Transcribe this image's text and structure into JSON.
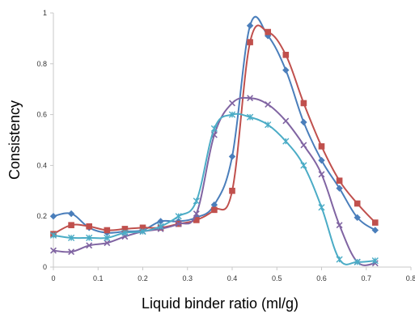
{
  "chart_data": {
    "type": "line",
    "title": "",
    "xlabel": "Liquid binder ratio (ml/g)",
    "ylabel": "Consistency",
    "xlim": [
      0,
      0.8
    ],
    "ylim": [
      0,
      1
    ],
    "xticks": [
      "0",
      "0.1",
      "0.2",
      "0.3",
      "0.4",
      "0.5",
      "0.6",
      "0.7",
      "0.8"
    ],
    "yticks": [
      "0",
      "0.2",
      "0.4",
      "0.6",
      "0.8",
      "1"
    ],
    "grid": false,
    "legend": "none",
    "series": [
      {
        "color": "#4a7ebb",
        "marker": "diamond",
        "points": [
          [
            0,
            0.2
          ],
          [
            0.04,
            0.21
          ],
          [
            0.08,
            0.155
          ],
          [
            0.12,
            0.135
          ],
          [
            0.16,
            0.14
          ],
          [
            0.2,
            0.145
          ],
          [
            0.24,
            0.18
          ],
          [
            0.28,
            0.18
          ],
          [
            0.32,
            0.195
          ],
          [
            0.36,
            0.245
          ],
          [
            0.4,
            0.435
          ],
          [
            0.44,
            0.95
          ],
          [
            0.48,
            0.91
          ],
          [
            0.52,
            0.775
          ],
          [
            0.56,
            0.57
          ],
          [
            0.6,
            0.42
          ],
          [
            0.64,
            0.31
          ],
          [
            0.68,
            0.195
          ],
          [
            0.72,
            0.145
          ]
        ]
      },
      {
        "color": "#c0504d",
        "marker": "square",
        "points": [
          [
            0,
            0.13
          ],
          [
            0.04,
            0.165
          ],
          [
            0.08,
            0.16
          ],
          [
            0.12,
            0.145
          ],
          [
            0.16,
            0.15
          ],
          [
            0.2,
            0.155
          ],
          [
            0.24,
            0.155
          ],
          [
            0.28,
            0.17
          ],
          [
            0.32,
            0.185
          ],
          [
            0.36,
            0.225
          ],
          [
            0.4,
            0.3
          ],
          [
            0.44,
            0.885
          ],
          [
            0.48,
            0.925
          ],
          [
            0.52,
            0.835
          ],
          [
            0.56,
            0.645
          ],
          [
            0.6,
            0.475
          ],
          [
            0.64,
            0.34
          ],
          [
            0.68,
            0.25
          ],
          [
            0.72,
            0.175
          ]
        ]
      },
      {
        "color": "#8064a2",
        "marker": "x",
        "points": [
          [
            0,
            0.065
          ],
          [
            0.04,
            0.06
          ],
          [
            0.08,
            0.085
          ],
          [
            0.12,
            0.095
          ],
          [
            0.16,
            0.12
          ],
          [
            0.2,
            0.14
          ],
          [
            0.24,
            0.15
          ],
          [
            0.28,
            0.17
          ],
          [
            0.32,
            0.21
          ],
          [
            0.36,
            0.52
          ],
          [
            0.4,
            0.645
          ],
          [
            0.44,
            0.665
          ],
          [
            0.48,
            0.64
          ],
          [
            0.52,
            0.575
          ],
          [
            0.56,
            0.48
          ],
          [
            0.6,
            0.365
          ],
          [
            0.64,
            0.165
          ],
          [
            0.68,
            0.02
          ],
          [
            0.72,
            0.015
          ]
        ]
      },
      {
        "color": "#4bacc6",
        "marker": "star",
        "points": [
          [
            0,
            0.125
          ],
          [
            0.04,
            0.115
          ],
          [
            0.08,
            0.115
          ],
          [
            0.12,
            0.115
          ],
          [
            0.16,
            0.135
          ],
          [
            0.2,
            0.14
          ],
          [
            0.24,
            0.16
          ],
          [
            0.28,
            0.2
          ],
          [
            0.32,
            0.26
          ],
          [
            0.36,
            0.545
          ],
          [
            0.4,
            0.6
          ],
          [
            0.44,
            0.59
          ],
          [
            0.48,
            0.56
          ],
          [
            0.52,
            0.495
          ],
          [
            0.56,
            0.4
          ],
          [
            0.6,
            0.235
          ],
          [
            0.64,
            0.03
          ],
          [
            0.68,
            0.02
          ],
          [
            0.72,
            0.025
          ]
        ]
      }
    ]
  }
}
